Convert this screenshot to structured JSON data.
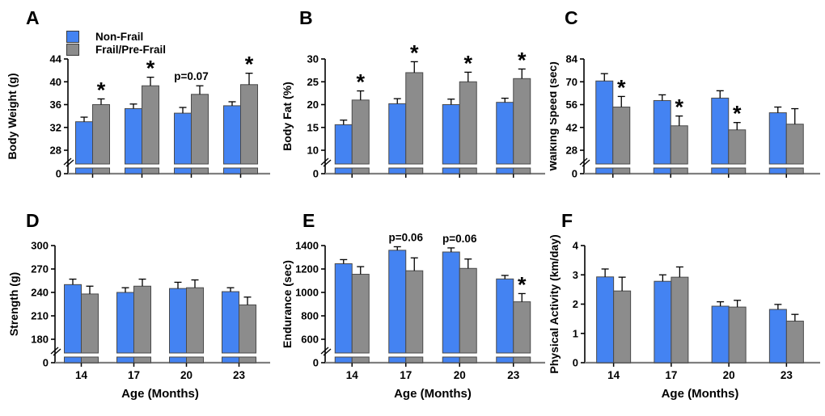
{
  "figure": {
    "x_axis_title": "Age (Months)",
    "categories": [
      "14",
      "17",
      "20",
      "23"
    ],
    "legend": {
      "items": [
        {
          "label": "Non-Frail",
          "color": "#4483F2"
        },
        {
          "label": "Frail/Pre-Frail",
          "color": "#8C8C8C"
        }
      ]
    },
    "colors": {
      "non_frail": "#4483F2",
      "frail": "#8C8C8C",
      "bar_border": "#4a4a4a",
      "axis": "#000000",
      "baseline": "#7f7f7f",
      "error_bar": "#000000",
      "text": "#000000"
    }
  },
  "chart_data": [
    {
      "panel": "A",
      "type": "bar",
      "ylabel": "Body Weight (g)",
      "yticks": [
        0,
        28,
        32,
        36,
        40,
        44
      ],
      "ylim": [
        0,
        44
      ],
      "axis_break": true,
      "show_x_labels": false,
      "categories": [
        "14",
        "17",
        "20",
        "23"
      ],
      "series": [
        {
          "name": "Non-Frail",
          "values": [
            33.0,
            35.3,
            34.5,
            35.8
          ],
          "errors": [
            0.8,
            0.8,
            1.0,
            0.7
          ]
        },
        {
          "name": "Frail/Pre-Frail",
          "values": [
            36.0,
            39.3,
            37.8,
            39.5
          ],
          "errors": [
            1.0,
            1.5,
            1.5,
            2.0
          ]
        }
      ],
      "annotations": [
        {
          "group": 0,
          "kind": "star",
          "text": "*"
        },
        {
          "group": 1,
          "kind": "star",
          "text": "*"
        },
        {
          "group": 2,
          "kind": "text",
          "text": "p=0.07"
        },
        {
          "group": 3,
          "kind": "star",
          "text": "*"
        }
      ]
    },
    {
      "panel": "B",
      "type": "bar",
      "ylabel": "Body Fat (%)",
      "yticks": [
        0,
        10,
        15,
        20,
        25,
        30
      ],
      "ylim": [
        0,
        30
      ],
      "axis_break": true,
      "show_x_labels": false,
      "categories": [
        "14",
        "17",
        "20",
        "23"
      ],
      "series": [
        {
          "name": "Non-Frail",
          "values": [
            15.6,
            20.2,
            20.0,
            20.5
          ],
          "errors": [
            1.0,
            1.1,
            1.2,
            0.9
          ]
        },
        {
          "name": "Frail/Pre-Frail",
          "values": [
            21.0,
            27.0,
            25.0,
            25.7
          ],
          "errors": [
            2.0,
            2.4,
            2.1,
            2.1
          ]
        }
      ],
      "annotations": [
        {
          "group": 0,
          "kind": "star",
          "text": "*"
        },
        {
          "group": 1,
          "kind": "star",
          "text": "*"
        },
        {
          "group": 2,
          "kind": "star",
          "text": "*"
        },
        {
          "group": 3,
          "kind": "star",
          "text": "*"
        }
      ]
    },
    {
      "panel": "C",
      "type": "bar",
      "ylabel": "Walking Speed (sec)",
      "yticks": [
        0,
        28,
        42,
        56,
        70,
        84
      ],
      "ylim": [
        0,
        84
      ],
      "axis_break": true,
      "show_x_labels": false,
      "categories": [
        "14",
        "17",
        "20",
        "23"
      ],
      "series": [
        {
          "name": "Non-Frail",
          "values": [
            70.5,
            58.5,
            60.0,
            51.0
          ],
          "errors": [
            4.5,
            3.5,
            4.5,
            3.5
          ]
        },
        {
          "name": "Frail/Pre-Frail",
          "values": [
            54.5,
            43.0,
            40.5,
            44.0
          ],
          "errors": [
            6.5,
            6.0,
            4.5,
            9.5
          ]
        }
      ],
      "annotations": [
        {
          "group": 0,
          "kind": "star",
          "text": "*"
        },
        {
          "group": 1,
          "kind": "star",
          "text": "*"
        },
        {
          "group": 2,
          "kind": "star",
          "text": "*"
        }
      ]
    },
    {
      "panel": "D",
      "type": "bar",
      "ylabel": "Strength (g)",
      "yticks": [
        0,
        180,
        210,
        240,
        270,
        300
      ],
      "ylim": [
        0,
        300
      ],
      "axis_break": true,
      "show_x_labels": true,
      "categories": [
        "14",
        "17",
        "20",
        "23"
      ],
      "series": [
        {
          "name": "Non-Frail",
          "values": [
            250,
            240,
            245,
            241
          ],
          "errors": [
            7,
            6,
            8,
            5
          ]
        },
        {
          "name": "Frail/Pre-Frail",
          "values": [
            238,
            248,
            246,
            224
          ],
          "errors": [
            10,
            9,
            10,
            10
          ]
        }
      ],
      "annotations": []
    },
    {
      "panel": "E",
      "type": "bar",
      "ylabel": "Endurance (sec)",
      "yticks": [
        0,
        600,
        800,
        1000,
        1200,
        1400
      ],
      "ylim": [
        0,
        1400
      ],
      "axis_break": true,
      "show_x_labels": true,
      "categories": [
        "14",
        "17",
        "20",
        "23"
      ],
      "series": [
        {
          "name": "Non-Frail",
          "values": [
            1245,
            1360,
            1345,
            1115
          ],
          "errors": [
            35,
            30,
            35,
            30
          ]
        },
        {
          "name": "Frail/Pre-Frail",
          "values": [
            1155,
            1185,
            1205,
            920
          ],
          "errors": [
            65,
            110,
            80,
            70
          ]
        }
      ],
      "annotations": [
        {
          "group": 1,
          "kind": "text",
          "text": "p=0.06"
        },
        {
          "group": 2,
          "kind": "text",
          "text": "p=0.06"
        },
        {
          "group": 3,
          "kind": "star",
          "text": "*"
        }
      ]
    },
    {
      "panel": "F",
      "type": "bar",
      "ylabel": "Physical Activity (km/day)",
      "yticks": [
        0,
        1,
        2,
        3,
        4
      ],
      "ylim": [
        0,
        4
      ],
      "axis_break": false,
      "show_x_labels": true,
      "categories": [
        "14",
        "17",
        "20",
        "23"
      ],
      "series": [
        {
          "name": "Non-Frail",
          "values": [
            2.93,
            2.78,
            1.93,
            1.82
          ],
          "errors": [
            0.27,
            0.22,
            0.15,
            0.17
          ]
        },
        {
          "name": "Frail/Pre-Frail",
          "values": [
            2.45,
            2.92,
            1.9,
            1.42
          ],
          "errors": [
            0.47,
            0.35,
            0.23,
            0.23
          ]
        }
      ],
      "annotations": []
    }
  ]
}
